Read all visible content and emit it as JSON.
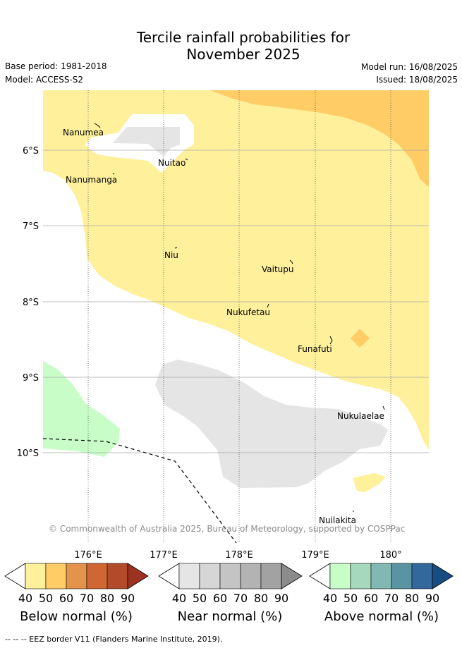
{
  "title_line1": "Tercile rainfall probabilities for",
  "title_line2": "November 2025",
  "meta": {
    "base_period": "Base period: 1981-2018",
    "model": "Model: ACCESS-S2",
    "model_run": "Model run: 16/08/2025",
    "issued": "Issued: 18/08/2025"
  },
  "copyright": "© Commonwealth of Australia 2025, Bureau of Meteorology, supported by COSPPac",
  "footer": "-- -- -- EEZ border V11 (Flanders Marine Institute, 2019).",
  "chart_data": {
    "type": "map",
    "lon_ticks": [
      "176°E",
      "177°E",
      "178°E",
      "179°E",
      "180°"
    ],
    "lat_ticks": [
      "6°S",
      "7°S",
      "8°S",
      "9°S",
      "10°S"
    ],
    "lon_range": [
      175.4,
      180.5
    ],
    "lat_range": [
      -11.2,
      -5.2
    ],
    "islands": [
      {
        "name": "Nanumea",
        "lon": 176.13,
        "lat": -5.67
      },
      {
        "name": "Nuitao",
        "lon": 177.33,
        "lat": -6.12
      },
      {
        "name": "Nanumanga",
        "lon": 176.32,
        "lat": -6.29
      },
      {
        "name": "Niu",
        "lon": 177.16,
        "lat": -7.31
      },
      {
        "name": "Vaitupu",
        "lon": 178.68,
        "lat": -7.48
      },
      {
        "name": "Nukufetau",
        "lon": 178.37,
        "lat": -8.03
      },
      {
        "name": "Funafuti",
        "lon": 179.21,
        "lat": -8.52
      },
      {
        "name": "Nukulaelae",
        "lon": 179.84,
        "lat": -9.38
      },
      {
        "name": "Nuilakita",
        "lon": 179.51,
        "lat": -10.78
      }
    ],
    "regions": [
      {
        "category": "Below normal",
        "probability_band": "40-50",
        "color": "#fff09c"
      },
      {
        "category": "Below normal",
        "probability_band": "50-60",
        "color": "#ffcc66"
      },
      {
        "category": "Near normal",
        "probability_band": "40-50",
        "color": "#e5e5e5"
      },
      {
        "category": "Above normal",
        "probability_band": "40-50",
        "color": "#c8fdc8"
      }
    ],
    "colorbars": [
      {
        "title": "Below normal (%)",
        "ticks": [
          "40",
          "50",
          "60",
          "70",
          "80",
          "90"
        ],
        "colors": [
          "#fff09c",
          "#ffcc66",
          "#e4944a",
          "#d06632",
          "#b34a2a",
          "#9c3322"
        ]
      },
      {
        "title": "Near normal (%)",
        "ticks": [
          "40",
          "50",
          "60",
          "70",
          "80",
          "90"
        ],
        "colors": [
          "#e5e5e5",
          "#d6d6d6",
          "#c4c4c4",
          "#b3b3b3",
          "#a2a2a2",
          "#8c8c8c"
        ]
      },
      {
        "title": "Above normal (%)",
        "ticks": [
          "40",
          "50",
          "60",
          "70",
          "80",
          "90"
        ],
        "colors": [
          "#c8fdc8",
          "#a6d8bd",
          "#82b8b2",
          "#5a94a2",
          "#33689c",
          "#164d82"
        ]
      }
    ]
  }
}
